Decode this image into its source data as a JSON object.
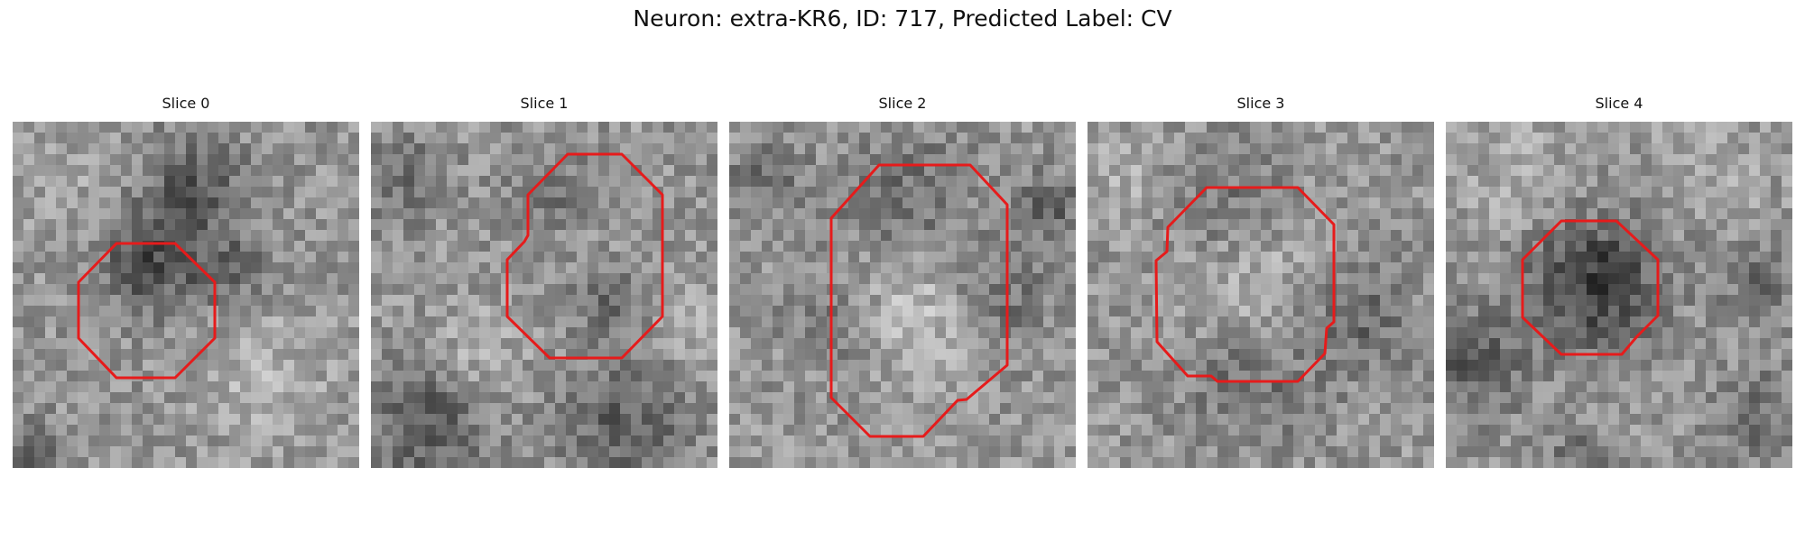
{
  "figure": {
    "title": "Neuron: extra-KR6, ID: 717, Predicted Label: CV"
  },
  "colors": {
    "contour": "#e61b1b"
  },
  "panels": [
    {
      "title": "Slice 0"
    },
    {
      "title": "Slice 1"
    },
    {
      "title": "Slice 2"
    },
    {
      "title": "Slice 3"
    },
    {
      "title": "Slice 4"
    }
  ]
}
